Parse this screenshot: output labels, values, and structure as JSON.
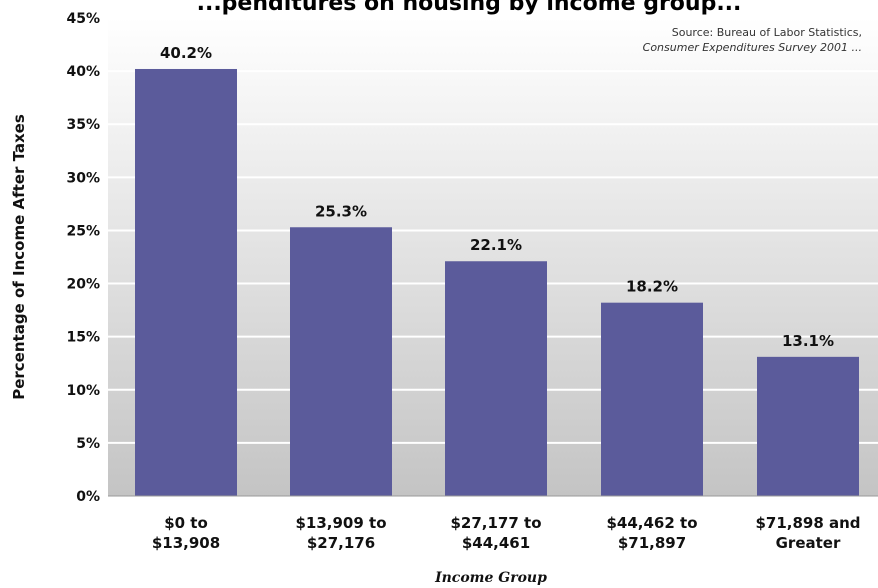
{
  "chart_data": {
    "type": "bar",
    "title": "...penditures on housing by income group...",
    "source_line1": "Source: Bureau of Labor Statistics,",
    "source_line2": "Consumer Expenditures Survey 2001 ...",
    "xlabel": "Income Group",
    "ylabel": "Percentage of Income After Taxes",
    "ylim": [
      0,
      45
    ],
    "yticks": [
      0,
      5,
      10,
      15,
      20,
      25,
      30,
      35,
      40,
      45
    ],
    "ytick_labels": [
      "0%",
      "5%",
      "10%",
      "15%",
      "20%",
      "25%",
      "30%",
      "35%",
      "40%",
      "45%"
    ],
    "categories": [
      [
        "$0 to",
        "$13,908"
      ],
      [
        "$13,909 to",
        "$27,176"
      ],
      [
        "$27,177 to",
        "$44,461"
      ],
      [
        "$44,462 to",
        "$71,897"
      ],
      [
        "$71,898 and",
        "Greater"
      ]
    ],
    "values": [
      40.2,
      25.3,
      22.1,
      18.2,
      13.1
    ],
    "data_labels": [
      "40.2%",
      "25.3%",
      "22.1%",
      "18.2%",
      "13.1%"
    ],
    "grid": true,
    "legend": "none",
    "colors": {
      "bar": "#5b5b9b",
      "plot_bg_top": "#ffffff",
      "plot_bg_bottom": "#c4c4c4",
      "grid": "#ffffff"
    }
  }
}
